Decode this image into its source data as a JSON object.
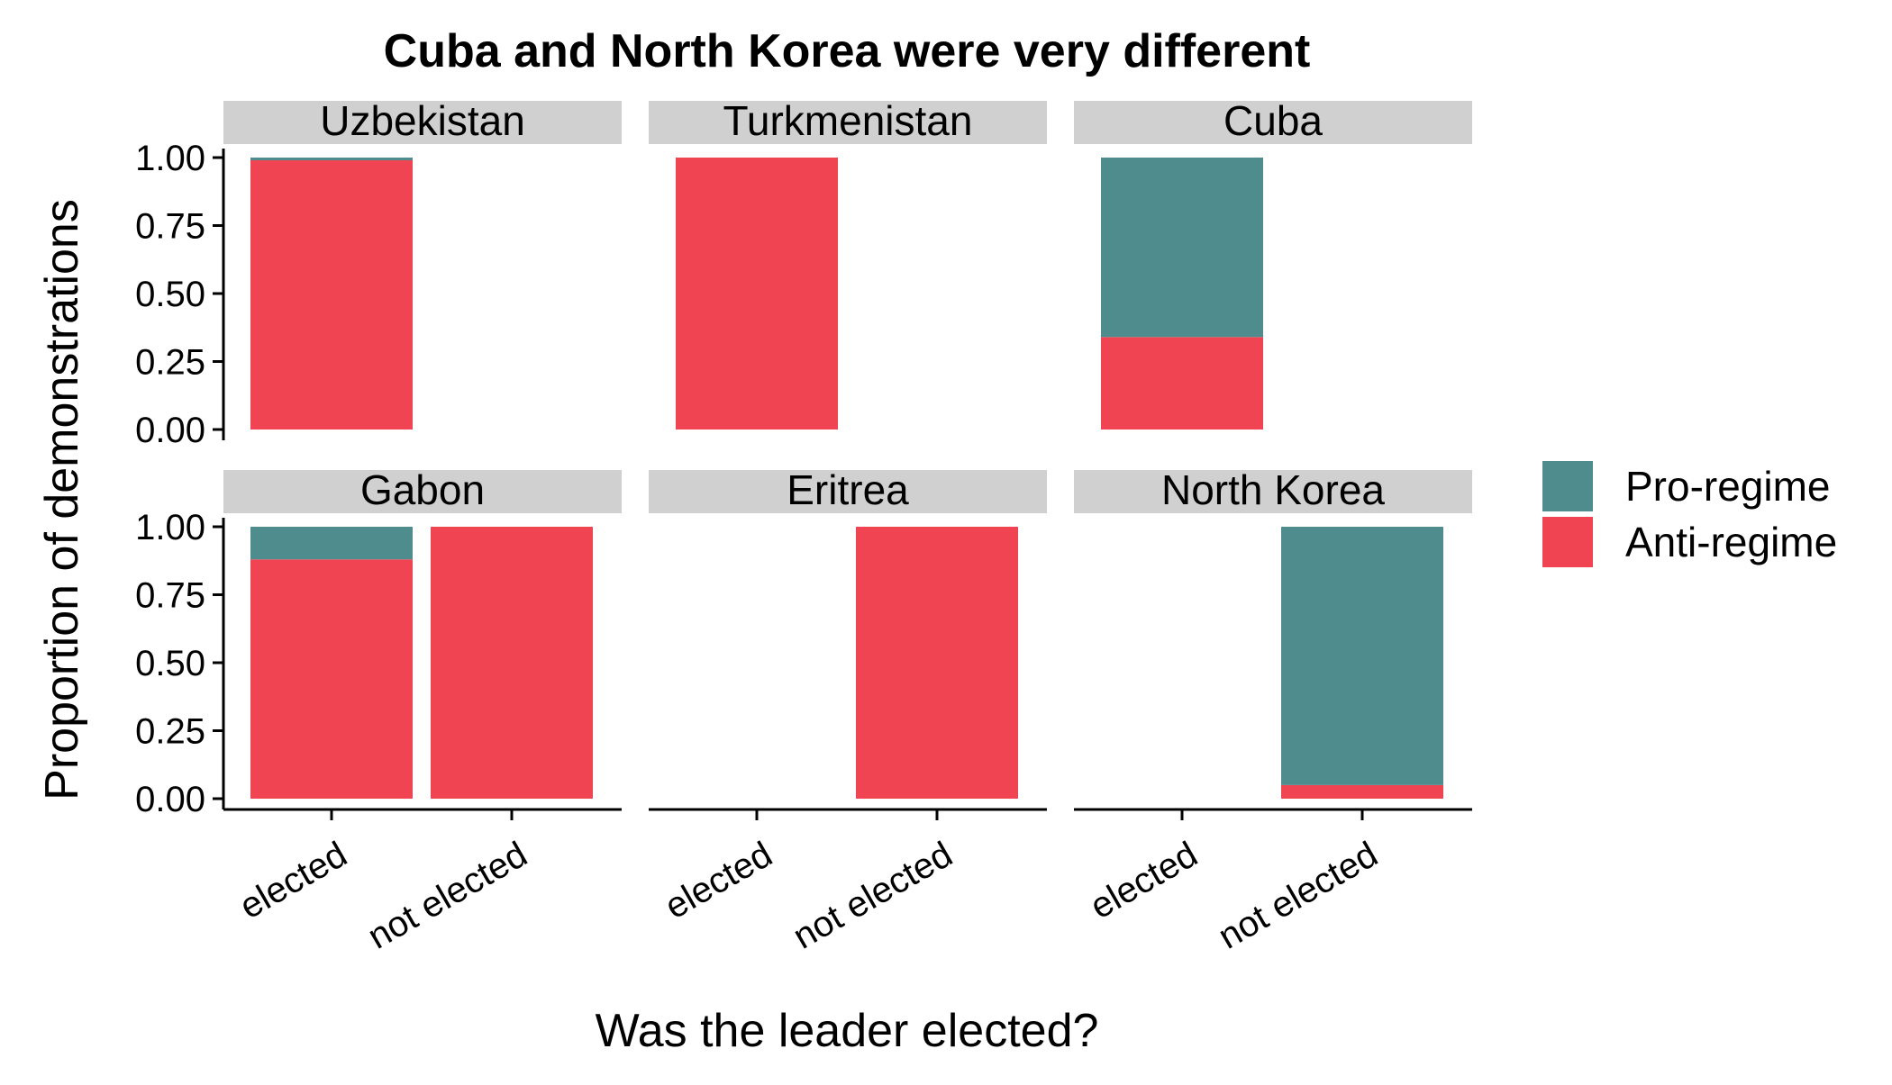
{
  "chart_data": {
    "type": "bar",
    "title": "Cuba and North Korea were very different",
    "xlabel": "Was the leader elected?",
    "ylabel": "Proportion of demonstrations",
    "ylim": [
      0,
      1
    ],
    "y_ticks": [
      "0.00",
      "0.25",
      "0.50",
      "0.75",
      "1.00"
    ],
    "categories": [
      "elected",
      "not elected"
    ],
    "stacking": "fill",
    "legend_position": "right",
    "series": [
      {
        "name": "Pro-regime",
        "color": "#4f8c8e"
      },
      {
        "name": "Anti-regime",
        "color": "#f04452"
      }
    ],
    "facets": [
      {
        "name": "Uzbekistan",
        "bars": [
          {
            "category": "elected",
            "anti": 0.99,
            "pro": 0.01
          }
        ]
      },
      {
        "name": "Turkmenistan",
        "bars": [
          {
            "category": "elected",
            "anti": 1.0,
            "pro": 0.0
          }
        ]
      },
      {
        "name": "Cuba",
        "bars": [
          {
            "category": "elected",
            "anti": 0.34,
            "pro": 0.66
          }
        ]
      },
      {
        "name": "Gabon",
        "bars": [
          {
            "category": "elected",
            "anti": 0.88,
            "pro": 0.12
          },
          {
            "category": "not elected",
            "anti": 1.0,
            "pro": 0.0
          }
        ]
      },
      {
        "name": "Eritrea",
        "bars": [
          {
            "category": "not elected",
            "anti": 1.0,
            "pro": 0.0
          }
        ]
      },
      {
        "name": "North Korea",
        "bars": [
          {
            "category": "not elected",
            "anti": 0.05,
            "pro": 0.95
          }
        ]
      }
    ]
  }
}
